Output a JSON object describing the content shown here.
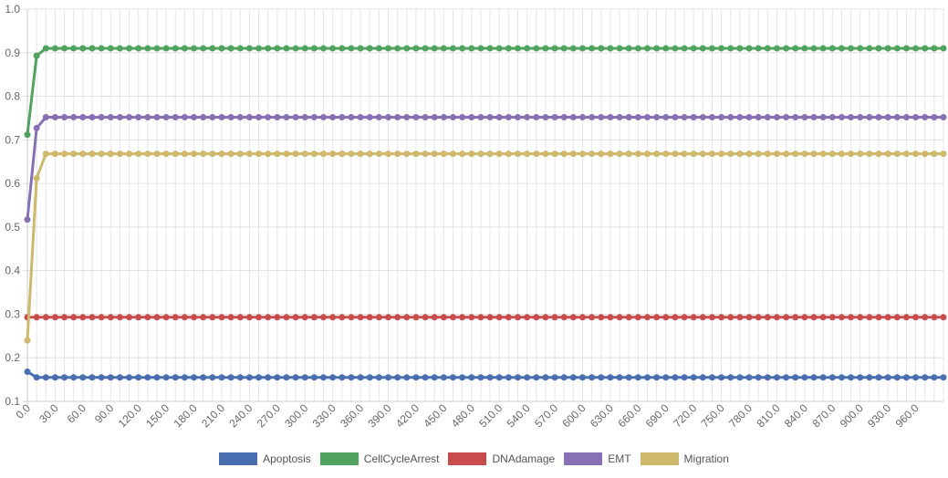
{
  "chart_data": {
    "type": "line",
    "title": "",
    "xlabel": "",
    "ylabel": "",
    "ylim": [
      0.1,
      1.0
    ],
    "yticks": [
      "0.1",
      "0.2",
      "0.3",
      "0.4",
      "0.5",
      "0.6",
      "0.7",
      "0.8",
      "0.9",
      "1.0"
    ],
    "x_start": 0,
    "x_step": 10,
    "x_count": 100,
    "x_tick_labels": [
      "0.0",
      "30.0",
      "60.0",
      "90.0",
      "120.0",
      "150.0",
      "180.0",
      "210.0",
      "240.0",
      "270.0",
      "300.0",
      "330.0",
      "360.0",
      "390.0",
      "420.0",
      "450.0",
      "480.0",
      "510.0",
      "540.0",
      "570.0",
      "600.0",
      "630.0",
      "660.0",
      "690.0",
      "720.0",
      "750.0",
      "780.0",
      "810.0",
      "840.0",
      "870.0",
      "900.0",
      "930.0",
      "960.0"
    ],
    "grid": true,
    "legend_position": "bottom",
    "series": [
      {
        "name": "Apoptosis",
        "color": "#4a6fb0",
        "initial": [
          0.168
        ],
        "steady": 0.155
      },
      {
        "name": "CellCycleArrest",
        "color": "#4fa35e",
        "initial": [
          0.712,
          0.893
        ],
        "steady": 0.91
      },
      {
        "name": "DNAdamage",
        "color": "#c94c4c",
        "initial": [
          0.293
        ],
        "steady": 0.293
      },
      {
        "name": "EMT",
        "color": "#8571b3",
        "initial": [
          0.517,
          0.727
        ],
        "steady": 0.752
      },
      {
        "name": "Migration",
        "color": "#cdb86b",
        "initial": [
          0.24,
          0.612
        ],
        "steady": 0.668
      }
    ]
  }
}
